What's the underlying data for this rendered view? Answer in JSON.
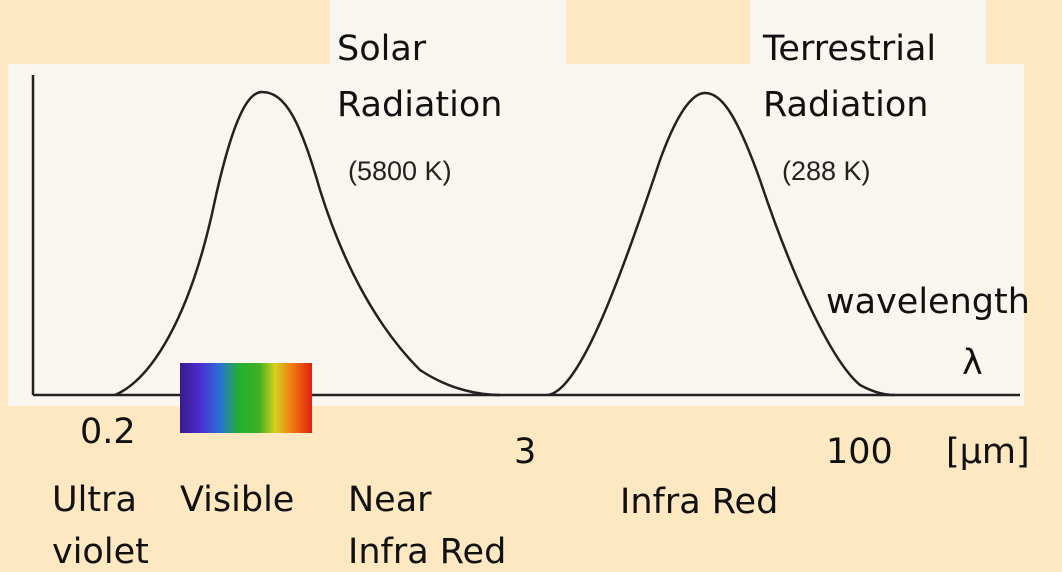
{
  "curves": [
    {
      "name": [
        "Solar",
        "Radiation"
      ],
      "temperature": "(5800 K)"
    },
    {
      "name": [
        "Terrestrial",
        "Radiation"
      ],
      "temperature": "(288 K)"
    }
  ],
  "axis": {
    "label": "wavelength",
    "symbol": "λ",
    "ticks": [
      "0.2",
      "3",
      "100"
    ],
    "unit": "[μm]"
  },
  "regions": [
    [
      "Ultra",
      "violet"
    ],
    [
      "Visible"
    ],
    [
      "Near",
      "Infra Red"
    ],
    [
      "Infra Red"
    ]
  ]
}
